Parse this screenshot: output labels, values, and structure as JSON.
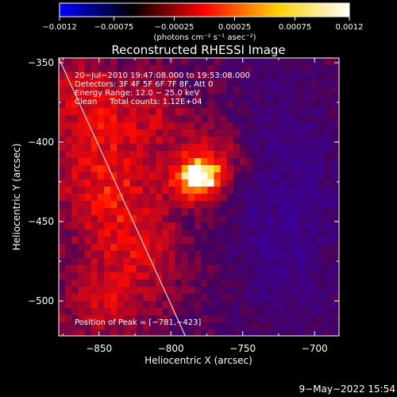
{
  "chart_data": {
    "type": "heatmap",
    "title": "Reconstructed RHESSI Image",
    "xlabel": "Heliocentric X (arcsec)",
    "ylabel": "Heliocentric Y (arcsec)",
    "xlim": [
      -878,
      -683
    ],
    "ylim": [
      -522,
      -347
    ],
    "x_ticks": [
      -850,
      -800,
      -750,
      -700
    ],
    "y_ticks": [
      -350,
      -400,
      -450,
      -500
    ],
    "x_tick_labels": [
      "−850",
      "−800",
      "−750",
      "−700"
    ],
    "y_tick_labels": [
      "−350",
      "−400",
      "−450",
      "−500"
    ],
    "colorbar": {
      "range": [
        -0.0012,
        0.0012
      ],
      "tick_labels": [
        "−0.0012",
        "−0.00075",
        "−0.00025",
        "0.00025",
        "0.00075",
        "0.0012"
      ],
      "unit_label": "(photons cm⁻² s⁻¹ asec⁻²)",
      "colors": [
        "#0000ff",
        "#000000",
        "#ff0000",
        "#ffd000",
        "#ffffff"
      ]
    },
    "annotations": [
      "20−Jul−2010 19:47:08.000 to 19:53:08.000",
      "Detectors: 3F 4F 5F 6F 7F 8F, Att 0",
      "Energy Range: 12.0 − 25.0 keV",
      "Clean     Total counts: 1.12E+04"
    ],
    "peak_label": "Position of Peak = [−781,−423]",
    "peak": {
      "x": -781,
      "y": -423,
      "value": 0.0012
    },
    "limb_line": [
      [
        -878,
        -347
      ],
      [
        -790,
        -522
      ]
    ],
    "sources": [
      {
        "x": -781,
        "y": -423,
        "value": 0.00115,
        "sx": 11,
        "sy": 9
      },
      {
        "x": -770,
        "y": -410,
        "value": 0.00045,
        "sx": 18,
        "sy": 14
      },
      {
        "x": -845,
        "y": -420,
        "value": 0.0005,
        "sx": 28,
        "sy": 30
      },
      {
        "x": -860,
        "y": -370,
        "value": 0.0004,
        "sx": 18,
        "sy": 18
      },
      {
        "x": -825,
        "y": -470,
        "value": 0.0004,
        "sx": 22,
        "sy": 25
      },
      {
        "x": -850,
        "y": -505,
        "value": 0.00035,
        "sx": 20,
        "sy": 14
      },
      {
        "x": -810,
        "y": -380,
        "value": 0.00025,
        "sx": 20,
        "sy": 14
      },
      {
        "x": -720,
        "y": -440,
        "value": -0.0004,
        "sx": 28,
        "sy": 60
      }
    ],
    "grid": false
  },
  "footer": {
    "date": "9−May−2022 15:54"
  }
}
